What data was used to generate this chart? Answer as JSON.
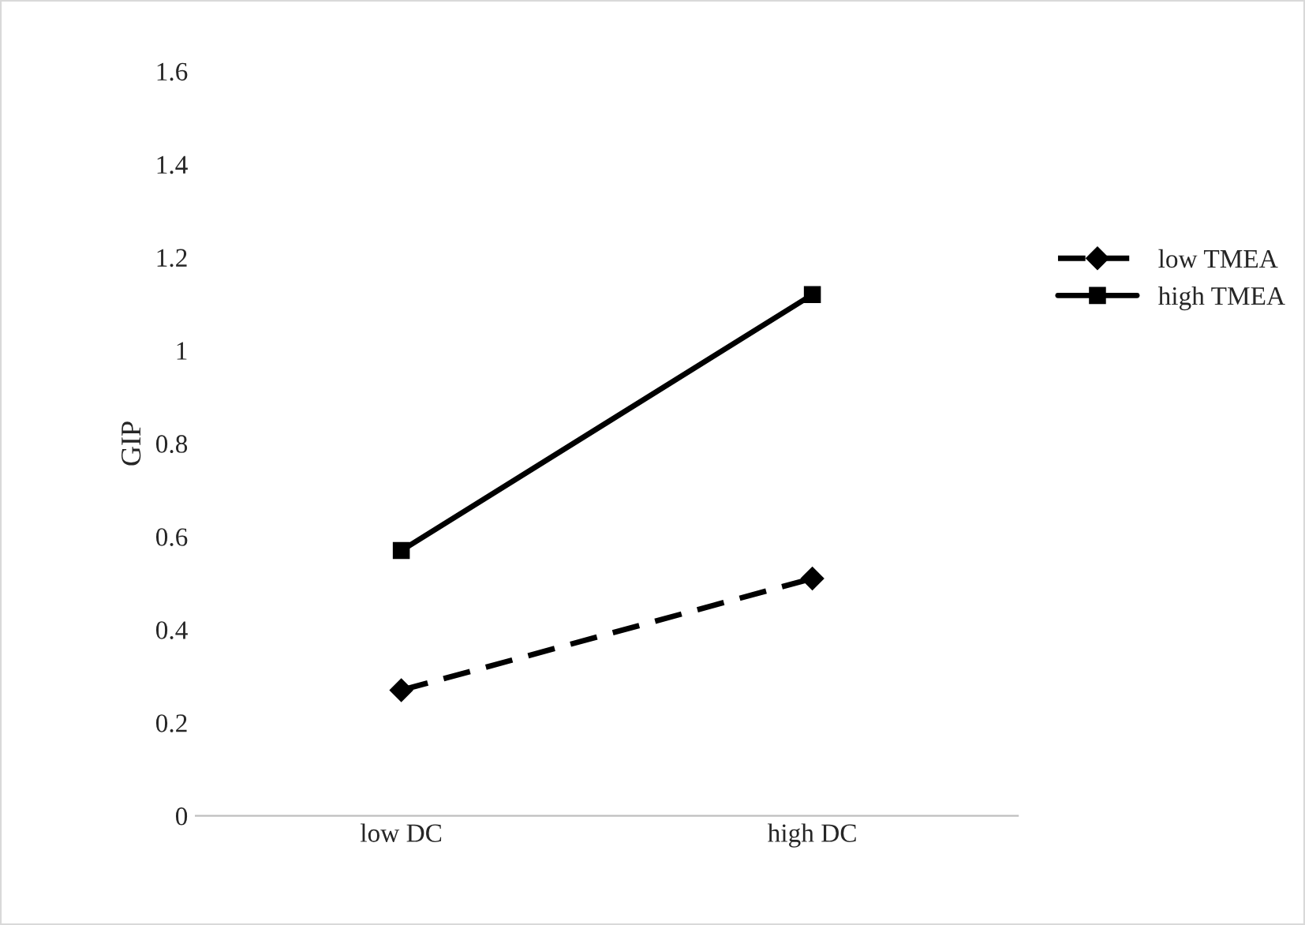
{
  "chart_data": {
    "type": "line",
    "ylabel": "GIP",
    "categories": [
      "low DC",
      "high DC"
    ],
    "series": [
      {
        "name": "low TMEA",
        "color": "#000000",
        "values": [
          0.27,
          0.51
        ],
        "marker": "diamond",
        "line_style": "dashed"
      },
      {
        "name": "high TMEA",
        "color": "#000000",
        "values": [
          0.57,
          1.12
        ],
        "marker": "square",
        "line_style": "solid"
      }
    ],
    "ylim": [
      0,
      1.6
    ],
    "yticks": [
      0,
      0.2,
      0.4,
      0.6,
      0.8,
      1,
      1.2,
      1.4,
      1.6
    ],
    "grid": false,
    "legend": "right"
  }
}
